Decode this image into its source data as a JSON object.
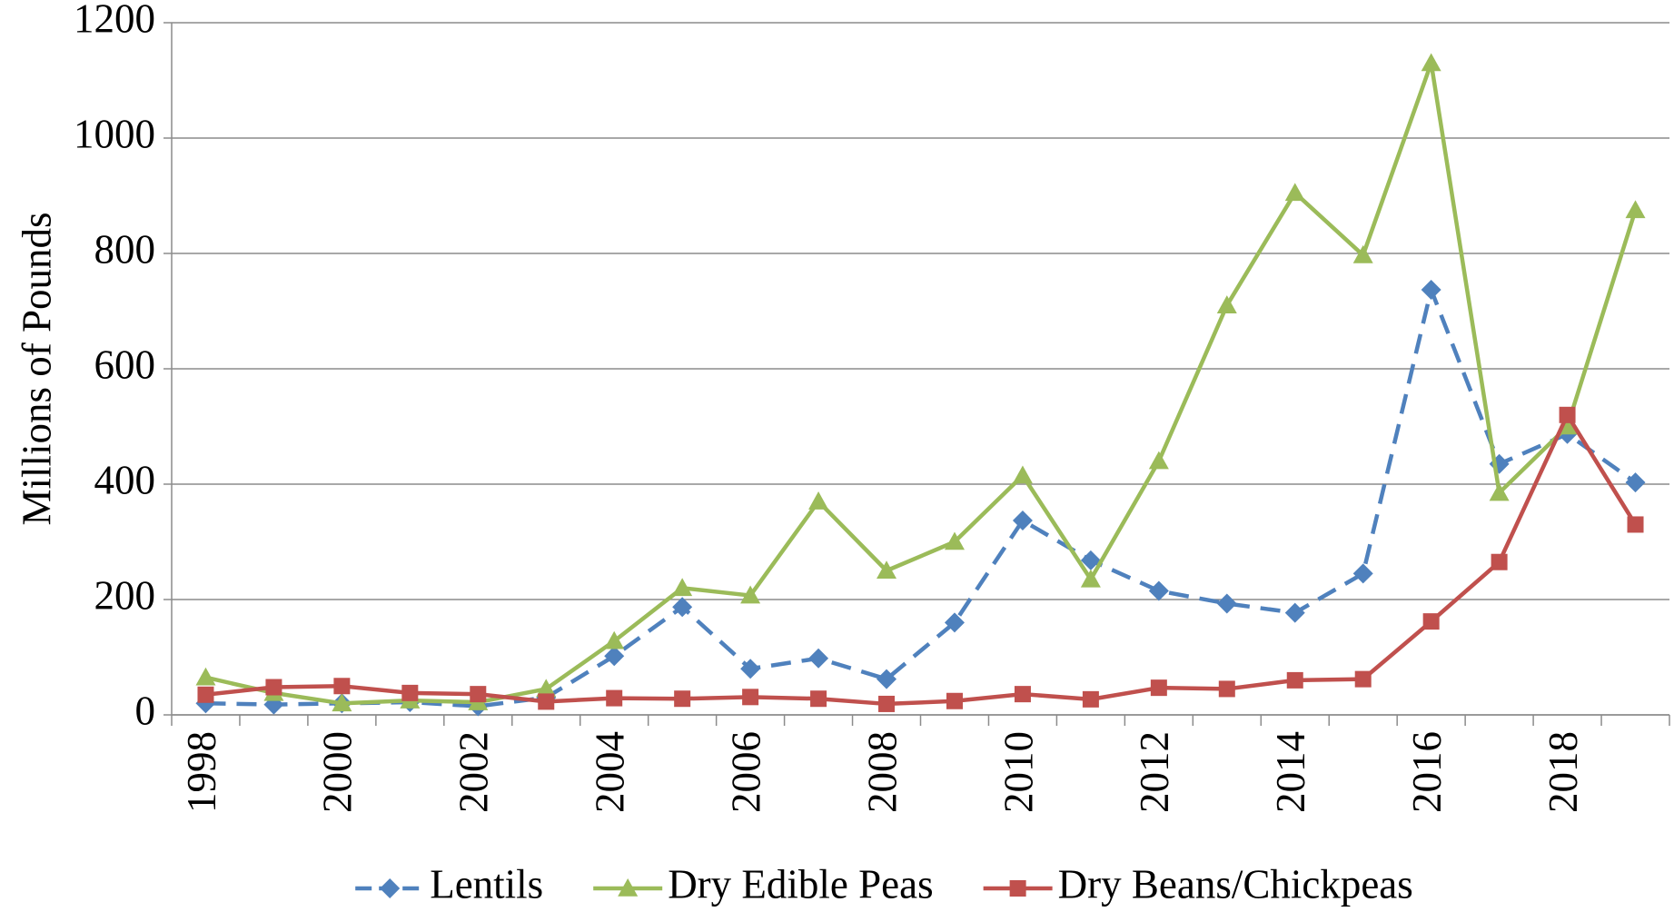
{
  "chart_data": {
    "type": "line",
    "y_label": "Millions of Pounds",
    "categories": [
      "1998",
      null,
      "2000",
      null,
      "2002",
      null,
      "2004",
      null,
      "2006",
      null,
      "2008",
      null,
      "2010",
      null,
      "2012",
      null,
      "2014",
      null,
      "2016",
      null,
      "2018",
      null
    ],
    "series": [
      {
        "name": "Lentils",
        "color": "#4f81bd",
        "marker": "diamond",
        "dashed": true,
        "values": [
          20,
          18,
          20,
          22,
          15,
          30,
          102,
          187,
          80,
          98,
          62,
          160,
          337,
          268,
          215,
          193,
          177,
          245,
          737,
          435,
          487,
          403
        ]
      },
      {
        "name": "Dry Edible Peas",
        "color": "#9bbb59",
        "marker": "triangle",
        "dashed": false,
        "values": [
          65,
          38,
          20,
          25,
          22,
          45,
          128,
          220,
          207,
          370,
          250,
          300,
          415,
          235,
          440,
          710,
          905,
          797,
          1130,
          385,
          500,
          875
        ]
      },
      {
        "name": "Dry Beans/Chickpeas",
        "color": "#c0504d",
        "marker": "square",
        "dashed": false,
        "values": [
          35,
          48,
          50,
          38,
          36,
          23,
          29,
          28,
          31,
          28,
          19,
          24,
          36,
          27,
          47,
          45,
          60,
          62,
          162,
          265,
          520,
          330
        ]
      }
    ],
    "ylim": [
      0,
      1200
    ],
    "yticks": [
      0,
      200,
      400,
      600,
      800,
      1000,
      1200
    ],
    "grid": true,
    "legend": "bottom"
  }
}
